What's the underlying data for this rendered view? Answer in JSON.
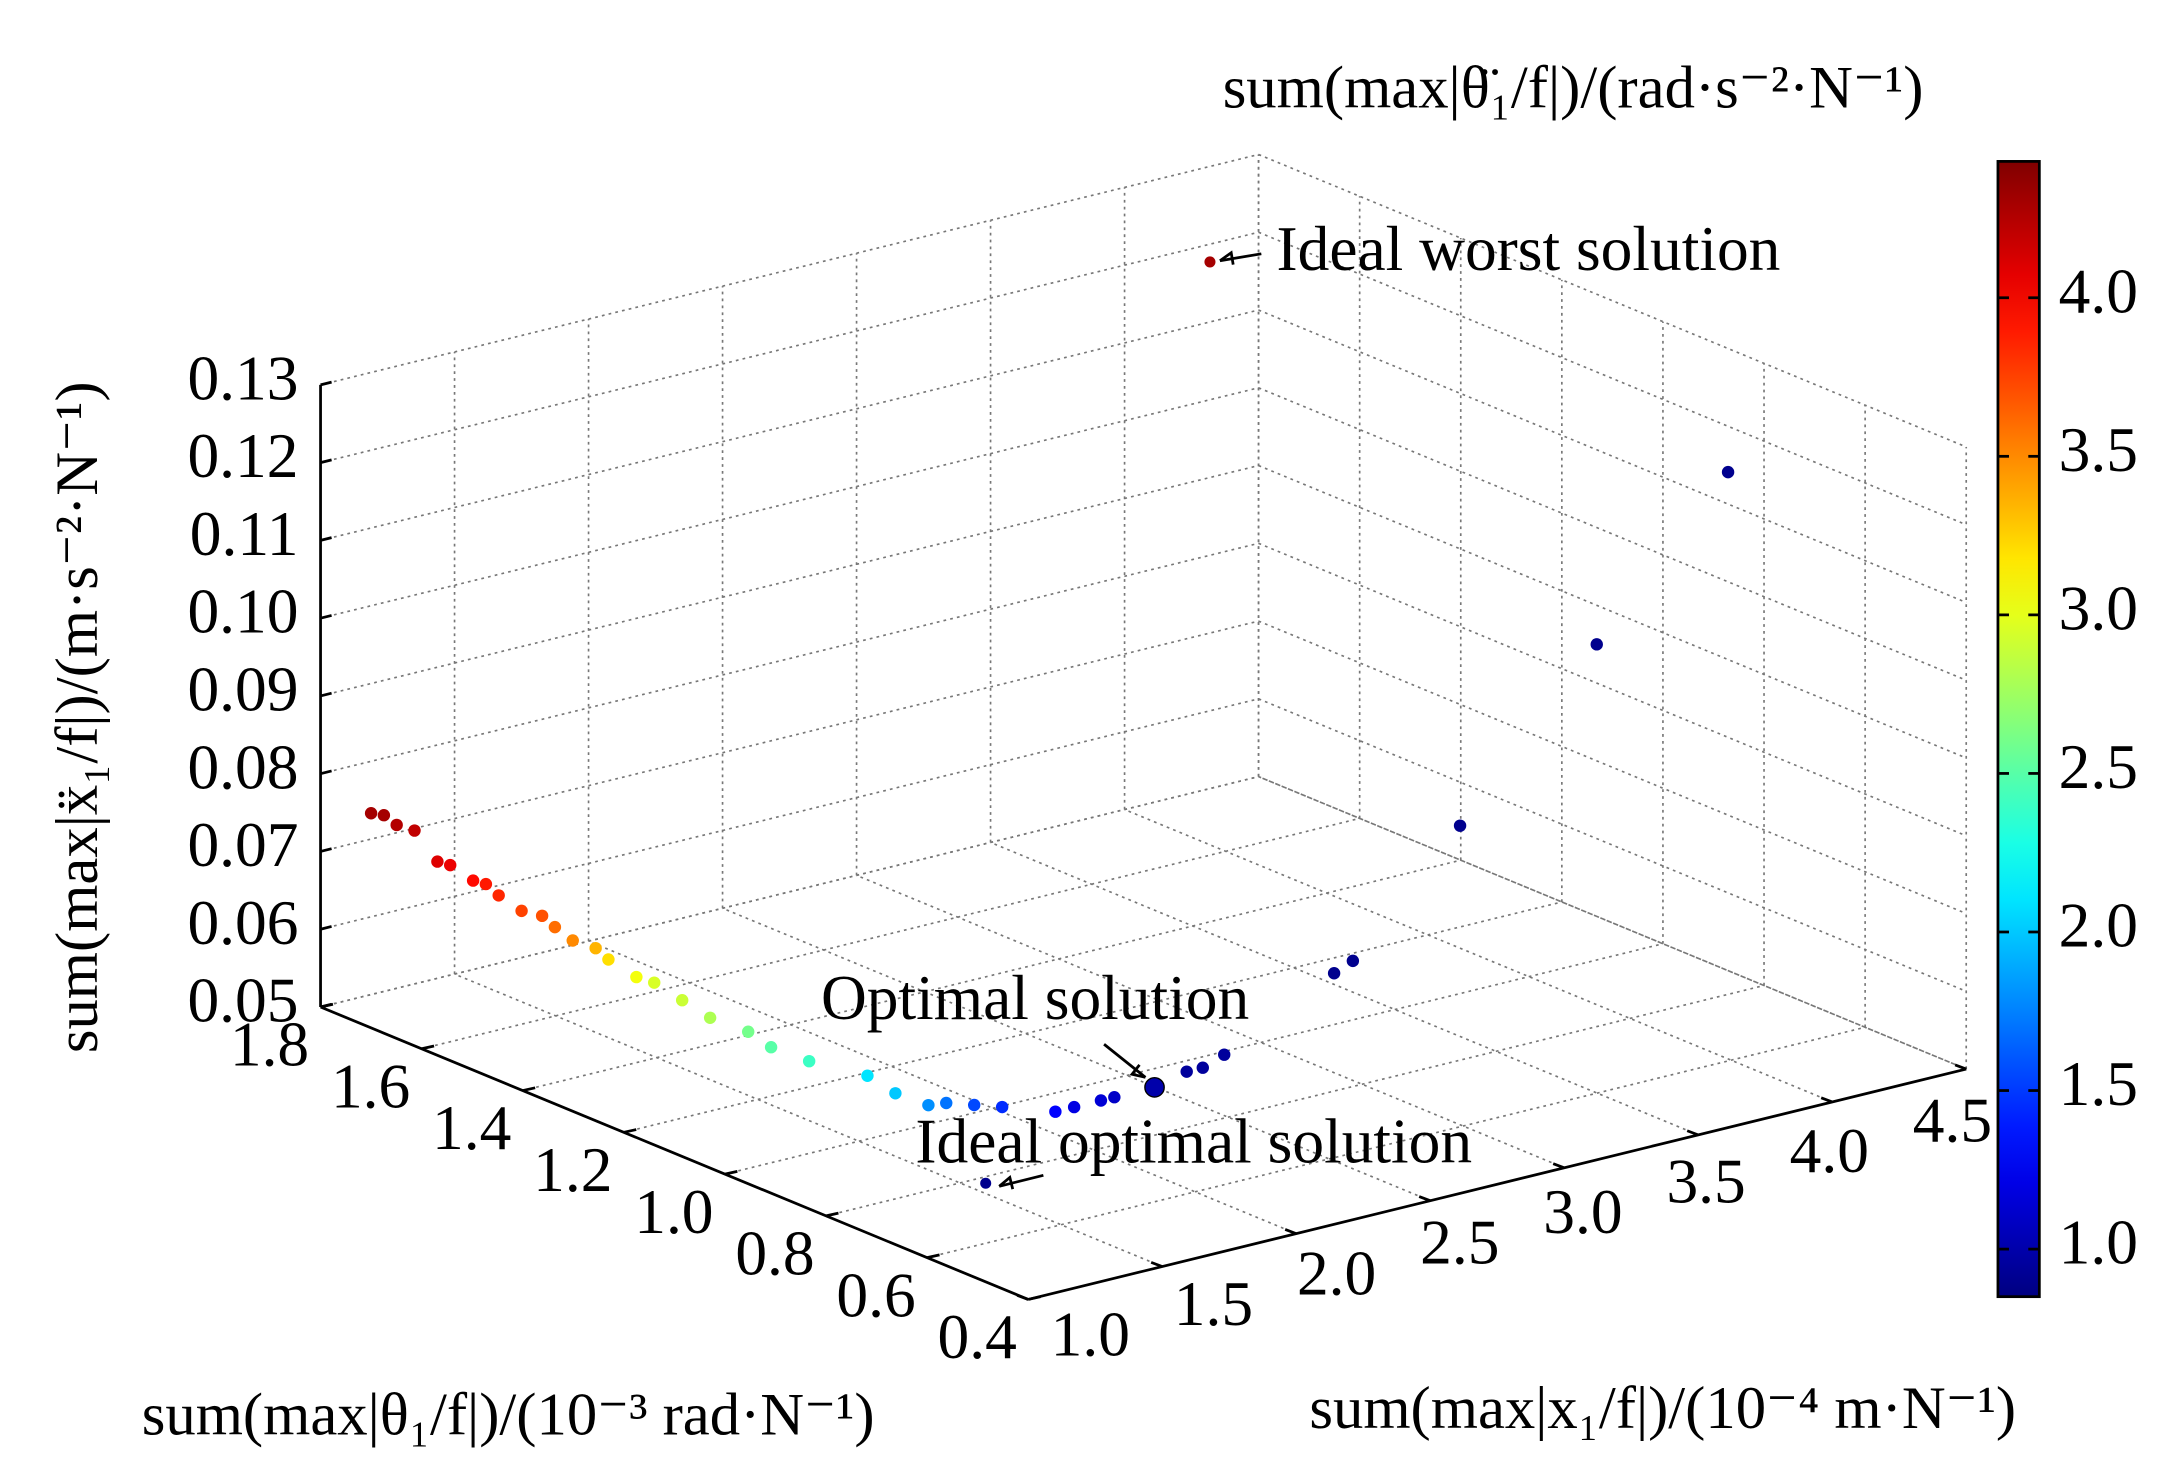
{
  "chart_data": {
    "type": "scatter3d",
    "x_label": "sum(max|x₁/f|)/(10⁻⁴ m·N⁻¹)",
    "y_label": "sum(max|θ₁/f|)/(10⁻³ rad·N⁻¹)",
    "z_label": "sum(max|ẍ₁/f|)/(m·s⁻²·N⁻¹)",
    "color_label": "sum(max|θ̈₁/f|)/(rad·s⁻²·N⁻¹)",
    "x": [
      1.0,
      1.01,
      1.02,
      1.03,
      1.04,
      1.05,
      1.06,
      1.07,
      1.08,
      1.09,
      1.11,
      1.12,
      1.13,
      1.14,
      1.15,
      1.16,
      1.17,
      1.18,
      1.19,
      1.2,
      1.21,
      1.22,
      1.23,
      1.24,
      1.25,
      1.26,
      1.27,
      1.28,
      1.29,
      1.36,
      1.46,
      1.51,
      1.78,
      1.84,
      1.92,
      2.33,
      2.4,
      2.8,
      3.31,
      3.8
    ],
    "y": [
      1.7,
      1.68,
      1.66,
      1.63,
      1.59,
      1.57,
      1.53,
      1.51,
      1.49,
      1.45,
      1.42,
      1.4,
      1.37,
      1.33,
      1.31,
      1.26,
      1.23,
      1.18,
      1.13,
      1.06,
      1.02,
      0.95,
      0.84,
      0.79,
      0.73,
      0.7,
      0.65,
      0.6,
      0.5,
      0.5,
      0.5,
      0.5,
      0.5,
      0.5,
      0.5,
      0.5,
      0.5,
      0.5,
      0.5,
      0.5
    ],
    "z": [
      0.0776,
      0.0778,
      0.077,
      0.077,
      0.074,
      0.074,
      0.073,
      0.073,
      0.072,
      0.071,
      0.071,
      0.07,
      0.069,
      0.069,
      0.068,
      0.067,
      0.067,
      0.066,
      0.065,
      0.065,
      0.064,
      0.064,
      0.065,
      0.064,
      0.064,
      0.065,
      0.066,
      0.067,
      0.069,
      0.069,
      0.069,
      0.069,
      0.07,
      0.07,
      0.071,
      0.078,
      0.079,
      0.093,
      0.112,
      0.13
    ],
    "c": [
      4.3,
      4.3,
      4.25,
      4.2,
      4.1,
      4.05,
      3.95,
      3.9,
      3.85,
      3.75,
      3.7,
      3.6,
      3.5,
      3.35,
      3.2,
      3.05,
      2.95,
      2.9,
      2.8,
      2.6,
      2.5,
      2.4,
      2.1,
      2.0,
      1.8,
      1.7,
      1.55,
      1.45,
      1.3,
      1.2,
      1.15,
      1.1,
      0.95,
      0.95,
      0.95,
      0.9,
      0.9,
      0.9,
      0.9,
      0.9
    ],
    "annotations": [
      {
        "text": "Ideal worst solution",
        "x": 4.13,
        "y": 1.7,
        "z": 0.122,
        "c": 4.3
      },
      {
        "text": "Optimal solution",
        "x": 1.66,
        "y": 0.5,
        "z": 0.069,
        "c": 1.0
      },
      {
        "text": "Ideal optimal solution",
        "x": 1.03,
        "y": 0.5,
        "z": 0.062,
        "c": 0.9
      }
    ],
    "xlim": [
      1,
      4.5
    ],
    "xticks": [
      {
        "value": 1,
        "label": "1.0"
      },
      1.5,
      {
        "value": 2,
        "label": "2.0"
      },
      2.5,
      {
        "value": 3,
        "label": "3.0"
      },
      3.5,
      {
        "value": 4,
        "label": "4.0"
      },
      4.5
    ],
    "ylim": [
      0.4,
      1.8
    ],
    "yticks": [
      0.4,
      0.6,
      0.8,
      {
        "value": 1,
        "label": "1.0"
      },
      1.2,
      1.4,
      1.6,
      1.8
    ],
    "zlim": [
      0.05,
      0.13
    ],
    "zticks": [
      0.05,
      0.06,
      0.07,
      0.08,
      0.09,
      {
        "value": 0.1,
        "label": "0.10"
      },
      0.11,
      0.12,
      0.13
    ],
    "clim": [
      0.85,
      4.43
    ],
    "cticks": [
      {
        "value": 1,
        "label": "1.0"
      },
      1.5,
      {
        "value": 2,
        "label": "2.0"
      },
      2.5,
      {
        "value": 3,
        "label": "3.0"
      },
      3.5,
      {
        "value": 4,
        "label": "4.0"
      }
    ],
    "colormap": "jet",
    "grid": true
  }
}
